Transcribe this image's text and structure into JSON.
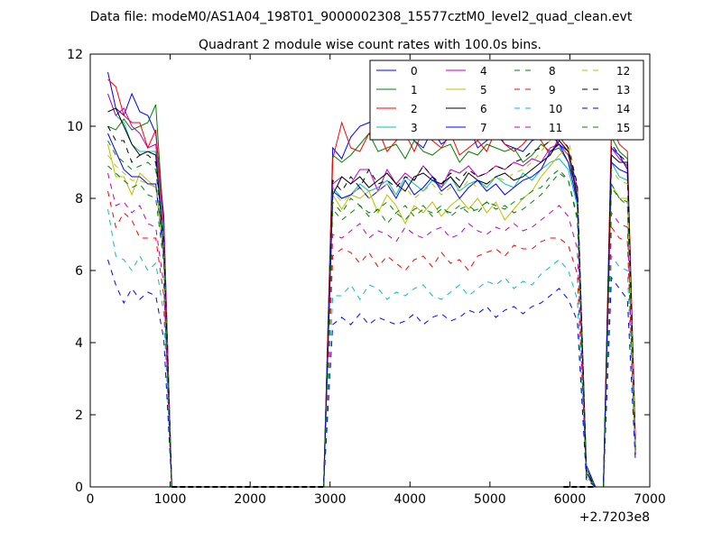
{
  "figure": {
    "suptitle": "Data file: modeM0/AS1A04_198T01_9000002308_15577cztM0_level2_quad_clean.evt",
    "title": "Quadrant 2 module wise count rates with 100.0s bins.",
    "offset_label": "+2.7203e8"
  },
  "chart_data": {
    "type": "line",
    "title": "Quadrant 2 module wise count rates with 100.0s bins.",
    "xlabel": "",
    "ylabel": "",
    "x_offset": 272030000,
    "xlim": [
      0,
      7000
    ],
    "ylim": [
      0,
      12
    ],
    "xticks": [
      0,
      1000,
      2000,
      3000,
      4000,
      5000,
      6000,
      7000
    ],
    "yticks": [
      0,
      2,
      4,
      6,
      8,
      10,
      12
    ],
    "grid": false,
    "legend_position": "top-right",
    "legend_columns": 4,
    "segments": [
      {
        "x_start": 220,
        "x_end": 1020
      },
      {
        "x_start": 2920,
        "x_end": 6320
      },
      {
        "x_start": 6420,
        "x_end": 6820
      }
    ],
    "baseline_segments": [
      {
        "x_start": 1020,
        "x_end": 2920
      },
      {
        "x_start": 5920,
        "x_end": 6320
      }
    ],
    "series": [
      {
        "name": "0",
        "color": "#0000ff",
        "dash": "solid",
        "seg1": [
          11.5,
          10.5,
          10.3,
          10.9,
          10.4,
          10.3,
          9.8,
          7.5,
          0
        ],
        "seg2": [
          0,
          9.4,
          9.1,
          9.7,
          10.0,
          10.1,
          10.2,
          9.7,
          10.1,
          9.8,
          9.6,
          9.4,
          9.9,
          9.5,
          9.7,
          9.8,
          10.0,
          9.4,
          9.6,
          9.8,
          9.5,
          9.4,
          9.3,
          9.6,
          9.7,
          9.8,
          9.5,
          9.3,
          8.3,
          0.6,
          0
        ],
        "seg3": [
          0,
          9.4,
          9.2,
          8.8,
          0.9
        ]
      },
      {
        "name": "1",
        "color": "#008000",
        "dash": "solid",
        "seg1": [
          10.0,
          9.9,
          10.2,
          9.9,
          10.0,
          10.1,
          10.6,
          7.2,
          0
        ],
        "seg2": [
          0,
          9.2,
          9.0,
          9.2,
          9.5,
          9.8,
          9.3,
          9.4,
          9.5,
          9.1,
          9.6,
          9.3,
          9.2,
          9.4,
          9.5,
          9.0,
          9.3,
          9.2,
          9.5,
          9.4,
          9.3,
          9.4,
          9.0,
          9.2,
          9.5,
          9.3,
          9.4,
          9.0,
          8.2,
          0.5,
          0
        ],
        "seg3": [
          0,
          9.7,
          9.3,
          9.1,
          1.2
        ]
      },
      {
        "name": "2",
        "color": "#ff0000",
        "dash": "solid",
        "seg1": [
          11.3,
          11.1,
          10.3,
          10.1,
          10.1,
          9.4,
          9.9,
          7.3,
          0
        ],
        "seg2": [
          0,
          9.1,
          10.1,
          9.4,
          9.3,
          9.8,
          9.9,
          9.3,
          9.6,
          9.8,
          9.3,
          9.9,
          9.6,
          9.4,
          9.8,
          9.2,
          9.4,
          9.6,
          9.3,
          9.9,
          9.5,
          9.3,
          9.5,
          9.8,
          9.6,
          9.2,
          9.7,
          9.4,
          8.0,
          0.4,
          0
        ],
        "seg3": [
          0,
          10.0,
          9.5,
          9.3,
          1.3
        ]
      },
      {
        "name": "3",
        "color": "#00bfbf",
        "dash": "solid",
        "seg1": [
          10.9,
          10.3,
          10.1,
          9.5,
          9.3,
          9.3,
          9.3,
          7.0,
          0
        ],
        "seg2": [
          0,
          8.3,
          8.0,
          8.1,
          8.4,
          8.2,
          8.3,
          8.5,
          8.1,
          8.6,
          8.4,
          8.2,
          8.5,
          8.3,
          8.6,
          8.2,
          8.4,
          8.5,
          8.3,
          8.6,
          8.4,
          8.3,
          8.7,
          8.5,
          8.8,
          9.0,
          9.1,
          8.8,
          7.8,
          0.4,
          0
        ],
        "seg3": [
          0,
          9.0,
          8.6,
          8.5,
          1.0
        ]
      },
      {
        "name": "4",
        "color": "#bf00bf",
        "dash": "solid",
        "seg1": [
          10.9,
          10.3,
          10.5,
          10.0,
          9.8,
          9.4,
          9.5,
          7.2,
          0
        ],
        "seg2": [
          0,
          8.4,
          8.6,
          8.4,
          8.8,
          8.8,
          8.2,
          8.8,
          8.4,
          8.7,
          8.5,
          8.9,
          8.6,
          8.3,
          8.8,
          8.7,
          8.9,
          8.6,
          8.7,
          8.9,
          8.8,
          9.0,
          8.9,
          9.1,
          9.0,
          9.4,
          9.5,
          9.2,
          8.2,
          0.4,
          0
        ],
        "seg3": [
          0,
          9.4,
          9.1,
          8.9,
          1.1
        ]
      },
      {
        "name": "5",
        "color": "#bfbf00",
        "dash": "solid",
        "seg1": [
          9.5,
          8.6,
          8.6,
          8.1,
          8.7,
          8.5,
          8.3,
          6.8,
          0
        ],
        "seg2": [
          0,
          8.1,
          7.7,
          8.1,
          8.0,
          8.2,
          7.6,
          8.1,
          7.8,
          7.3,
          7.8,
          7.6,
          7.9,
          7.5,
          7.8,
          8.0,
          7.7,
          8.0,
          7.6,
          7.9,
          7.4,
          7.7,
          8.0,
          8.2,
          8.6,
          8.9,
          9.2,
          9.4,
          7.9,
          0.3,
          0
        ],
        "seg3": [
          0,
          8.4,
          8.0,
          8.0,
          1.0
        ]
      },
      {
        "name": "6",
        "color": "#000000",
        "dash": "solid",
        "seg1": [
          10.4,
          10.5,
          10.0,
          9.5,
          9.2,
          9.3,
          9.2,
          6.6,
          0
        ],
        "seg2": [
          0,
          8.1,
          8.6,
          8.4,
          8.6,
          8.3,
          8.5,
          8.7,
          8.4,
          8.2,
          8.6,
          8.7,
          8.5,
          8.4,
          8.6,
          8.3,
          8.7,
          8.5,
          8.4,
          8.6,
          8.7,
          8.5,
          8.6,
          8.8,
          9.0,
          9.2,
          9.6,
          9.3,
          8.0,
          0.4,
          0
        ],
        "seg3": [
          0,
          9.2,
          9.0,
          9.0,
          1.0
        ]
      },
      {
        "name": "7",
        "color": "#0000ff",
        "dash": "solid",
        "seg1": [
          9.8,
          9.3,
          8.8,
          8.6,
          8.6,
          8.4,
          8.4,
          6.4,
          0
        ],
        "seg2": [
          0,
          8.2,
          8.0,
          8.1,
          8.3,
          8.0,
          8.2,
          8.4,
          8.0,
          8.5,
          8.1,
          8.3,
          8.6,
          8.2,
          8.4,
          8.0,
          8.3,
          8.5,
          8.2,
          8.4,
          8.1,
          8.3,
          8.5,
          8.6,
          8.8,
          9.3,
          9.5,
          9.0,
          7.9,
          0.4,
          0
        ],
        "seg3": [
          0,
          9.0,
          8.8,
          8.7,
          1.0
        ]
      },
      {
        "name": "8",
        "color": "#008000",
        "dash": "dashed",
        "seg1": [
          9.6,
          9.2,
          9.0,
          8.8,
          8.9,
          9.0,
          8.8,
          6.6,
          0
        ],
        "seg2": [
          0,
          7.9,
          7.6,
          8.0,
          7.8,
          7.6,
          7.7,
          7.3,
          7.6,
          7.8,
          7.5,
          7.7,
          7.6,
          7.8,
          7.5,
          7.7,
          7.8,
          7.6,
          7.9,
          7.7,
          7.8,
          7.6,
          7.7,
          7.9,
          8.1,
          8.4,
          8.7,
          8.5,
          7.5,
          0.3,
          0
        ],
        "seg3": [
          0,
          8.4,
          8.0,
          7.9,
          1.0
        ]
      },
      {
        "name": "9",
        "color": "#ff0000",
        "dash": "dashed",
        "seg1": [
          8.2,
          7.2,
          7.6,
          7.4,
          6.9,
          6.9,
          6.9,
          5.3,
          0
        ],
        "seg2": [
          0,
          6.4,
          6.6,
          6.5,
          6.2,
          6.5,
          6.1,
          6.4,
          6.2,
          6.0,
          6.3,
          6.4,
          6.1,
          6.5,
          6.2,
          6.3,
          6.0,
          6.4,
          6.5,
          6.6,
          6.4,
          6.7,
          6.6,
          6.6,
          6.8,
          6.9,
          6.9,
          6.7,
          5.9,
          0.3,
          0
        ],
        "seg3": [
          0,
          7.2,
          6.9,
          6.8,
          0.9
        ]
      },
      {
        "name": "10",
        "color": "#00bfbf",
        "dash": "dashed",
        "seg1": [
          7.7,
          6.4,
          6.3,
          6.0,
          6.4,
          6.0,
          6.2,
          4.8,
          0
        ],
        "seg2": [
          0,
          5.3,
          5.3,
          5.6,
          5.2,
          5.6,
          5.5,
          5.2,
          5.4,
          5.3,
          5.5,
          5.6,
          5.3,
          5.2,
          5.4,
          5.6,
          5.3,
          5.5,
          5.7,
          5.6,
          5.8,
          5.5,
          5.7,
          5.6,
          5.9,
          6.1,
          6.3,
          6.0,
          5.2,
          0.2,
          0
        ],
        "seg3": [
          0,
          6.4,
          6.1,
          6.0,
          0.8
        ]
      },
      {
        "name": "11",
        "color": "#bf00bf",
        "dash": "dashed",
        "seg1": [
          8.7,
          7.8,
          7.9,
          7.6,
          7.8,
          7.3,
          7.2,
          5.6,
          0
        ],
        "seg2": [
          0,
          7.0,
          6.9,
          7.1,
          7.3,
          6.9,
          7.1,
          7.0,
          6.8,
          7.2,
          7.0,
          6.9,
          7.1,
          7.2,
          6.9,
          7.0,
          7.3,
          7.1,
          7.0,
          7.2,
          7.1,
          7.3,
          7.1,
          7.2,
          7.4,
          7.6,
          7.8,
          7.5,
          6.6,
          0.3,
          0
        ],
        "seg3": [
          0,
          7.6,
          7.3,
          7.2,
          0.9
        ]
      },
      {
        "name": "12",
        "color": "#bfbf00",
        "dash": "dashed",
        "seg1": [
          9.2,
          8.9,
          8.7,
          8.5,
          8.5,
          8.4,
          8.3,
          6.5,
          0
        ],
        "seg2": [
          0,
          8.2,
          7.9,
          8.1,
          8.3,
          8.0,
          8.2,
          8.4,
          8.1,
          8.3,
          8.0,
          8.2,
          8.4,
          8.1,
          8.3,
          8.2,
          8.5,
          8.3,
          8.4,
          8.6,
          8.5,
          8.7,
          8.8,
          9.0,
          9.3,
          9.6,
          10.2,
          9.7,
          8.2,
          0.4,
          0
        ],
        "seg3": [
          0,
          8.8,
          8.5,
          8.4,
          1.0
        ]
      },
      {
        "name": "13",
        "color": "#000000",
        "dash": "dashed",
        "seg1": [
          10.0,
          9.6,
          9.6,
          9.0,
          9.2,
          9.2,
          9.0,
          6.8,
          0
        ],
        "seg2": [
          0,
          8.5,
          8.2,
          8.6,
          8.3,
          8.8,
          8.4,
          8.5,
          8.3,
          8.6,
          8.5,
          8.9,
          8.6,
          8.4,
          8.7,
          8.5,
          8.8,
          8.6,
          8.7,
          8.9,
          8.8,
          9.0,
          9.1,
          9.3,
          9.4,
          9.6,
          9.8,
          9.4,
          8.4,
          0.4,
          0
        ],
        "seg3": [
          0,
          9.5,
          9.2,
          9.0,
          1.1
        ]
      },
      {
        "name": "14",
        "color": "#0000ff",
        "dash": "dashed",
        "seg1": [
          6.3,
          5.6,
          5.1,
          5.5,
          5.2,
          5.4,
          5.3,
          4.1,
          0
        ],
        "seg2": [
          0,
          4.5,
          4.7,
          4.5,
          4.8,
          4.5,
          4.7,
          4.6,
          4.5,
          4.6,
          4.8,
          4.5,
          4.7,
          4.8,
          4.6,
          4.7,
          4.9,
          4.8,
          5.0,
          4.7,
          4.9,
          5.0,
          4.8,
          5.0,
          5.1,
          5.3,
          5.5,
          5.2,
          4.6,
          0.2,
          0
        ],
        "seg3": [
          0,
          5.8,
          5.5,
          5.2,
          0.7
        ]
      },
      {
        "name": "15",
        "color": "#008000",
        "dash": "dashed",
        "seg1": [
          8.9,
          8.7,
          8.5,
          8.3,
          8.4,
          8.1,
          8.0,
          6.2,
          0
        ],
        "seg2": [
          0,
          7.7,
          7.4,
          7.6,
          7.8,
          7.5,
          7.7,
          7.9,
          7.6,
          7.4,
          7.7,
          7.8,
          7.5,
          7.7,
          7.6,
          7.8,
          7.6,
          7.7,
          7.9,
          7.8,
          7.7,
          7.9,
          8.0,
          8.2,
          8.3,
          8.6,
          8.8,
          8.5,
          7.4,
          0.3,
          0
        ],
        "seg3": [
          0,
          8.3,
          8.0,
          7.8,
          1.0
        ]
      }
    ]
  }
}
